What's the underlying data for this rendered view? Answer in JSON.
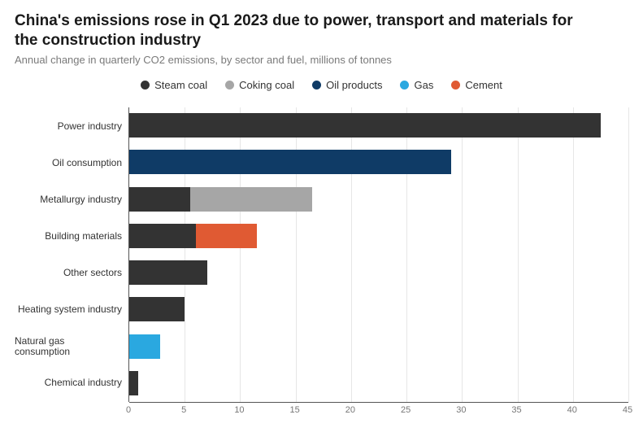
{
  "title": "China's emissions rose in Q1 2023 due to power, transport and materials for the construction industry",
  "subtitle": "Annual change in quarterly CO2 emissions, by sector and fuel, millions of tonnes",
  "chart": {
    "type": "stacked-bar-horizontal",
    "background_color": "#ffffff",
    "grid_color": "#e6e6e6",
    "axis_color": "#555555",
    "label_fontsize": 12,
    "tick_fontsize": 11,
    "xlim": [
      0,
      45
    ],
    "xtick_step": 5,
    "xticks": [
      0,
      5,
      10,
      15,
      20,
      25,
      30,
      35,
      40,
      45
    ],
    "legend": [
      {
        "key": "steam_coal",
        "label": "Steam coal",
        "color": "#333333"
      },
      {
        "key": "coking_coal",
        "label": "Coking coal",
        "color": "#a6a6a6"
      },
      {
        "key": "oil_products",
        "label": "Oil products",
        "color": "#0f3b66"
      },
      {
        "key": "gas",
        "label": "Gas",
        "color": "#2aa8e0"
      },
      {
        "key": "cement",
        "label": "Cement",
        "color": "#e05a33"
      }
    ],
    "categories": [
      {
        "label": "Power industry",
        "segments": [
          {
            "series": "steam_coal",
            "value": 42.5
          }
        ]
      },
      {
        "label": "Oil consumption",
        "segments": [
          {
            "series": "oil_products",
            "value": 29.0
          }
        ]
      },
      {
        "label": "Metallurgy industry",
        "segments": [
          {
            "series": "steam_coal",
            "value": 5.5
          },
          {
            "series": "coking_coal",
            "value": 11.0
          }
        ]
      },
      {
        "label": "Building materials",
        "segments": [
          {
            "series": "steam_coal",
            "value": 6.0
          },
          {
            "series": "cement",
            "value": 5.5
          }
        ]
      },
      {
        "label": "Other sectors",
        "segments": [
          {
            "series": "steam_coal",
            "value": 7.0
          }
        ]
      },
      {
        "label": "Heating system industry",
        "segments": [
          {
            "series": "steam_coal",
            "value": 5.0
          }
        ]
      },
      {
        "label": "Natural gas consumption",
        "segments": [
          {
            "series": "gas",
            "value": 2.8
          }
        ]
      },
      {
        "label": "Chemical industry",
        "segments": [
          {
            "series": "steam_coal",
            "value": 0.8
          }
        ]
      }
    ]
  }
}
